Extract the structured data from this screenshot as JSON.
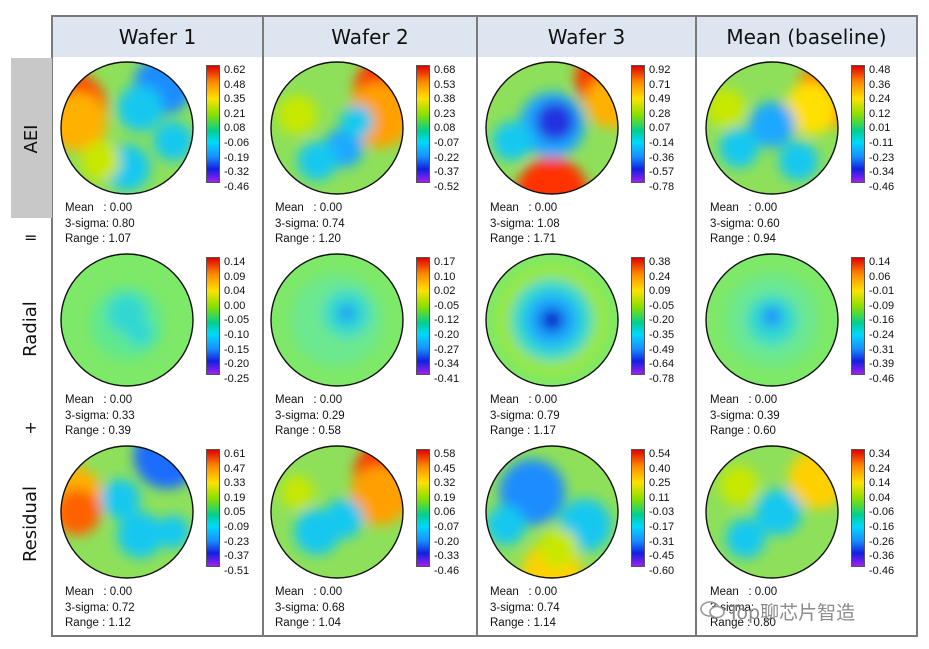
{
  "columns": [
    "Wafer 1",
    "Wafer 2",
    "Wafer 3",
    "Mean (baseline)"
  ],
  "rows": [
    {
      "label": "AEI",
      "operator": "="
    },
    {
      "label": "Radial",
      "operator": "+"
    },
    {
      "label": "Residual",
      "operator": ""
    }
  ],
  "stat_labels": {
    "mean": "Mean",
    "sigma": "3-sigma",
    "range": "Range"
  },
  "panels": [
    [
      {
        "mean": "0.00",
        "sigma": "0.80",
        "range": "1.07",
        "ticks": [
          "0.62",
          "0.48",
          "0.35",
          "0.21",
          "0.08",
          "-0.06",
          "-0.19",
          "-0.32",
          "-0.46"
        ]
      },
      {
        "mean": "0.00",
        "sigma": "0.74",
        "range": "1.20",
        "ticks": [
          "0.68",
          "0.53",
          "0.38",
          "0.23",
          "0.08",
          "-0.07",
          "-0.22",
          "-0.37",
          "-0.52"
        ]
      },
      {
        "mean": "0.00",
        "sigma": "1.08",
        "range": "1.71",
        "ticks": [
          "0.92",
          "0.71",
          "0.49",
          "0.28",
          "0.07",
          "-0.14",
          "-0.36",
          "-0.57",
          "-0.78"
        ]
      },
      {
        "mean": "0.00",
        "sigma": "0.60",
        "range": "0.94",
        "ticks": [
          "0.48",
          "0.36",
          "0.24",
          "0.12",
          "0.01",
          "-0.11",
          "-0.23",
          "-0.34",
          "-0.46"
        ]
      }
    ],
    [
      {
        "mean": "0.00",
        "sigma": "0.33",
        "range": "0.39",
        "ticks": [
          "0.14",
          "0.09",
          "0.04",
          "0.00",
          "-0.05",
          "-0.10",
          "-0.15",
          "-0.20",
          "-0.25"
        ]
      },
      {
        "mean": "0.00",
        "sigma": "0.29",
        "range": "0.58",
        "ticks": [
          "0.17",
          "0.10",
          "0.02",
          "-0.05",
          "-0.12",
          "-0.20",
          "-0.27",
          "-0.34",
          "-0.41"
        ]
      },
      {
        "mean": "0.00",
        "sigma": "0.79",
        "range": "1.17",
        "ticks": [
          "0.38",
          "0.24",
          "0.09",
          "-0.05",
          "-0.20",
          "-0.35",
          "-0.49",
          "-0.64",
          "-0.78"
        ]
      },
      {
        "mean": "0.00",
        "sigma": "0.39",
        "range": "0.60",
        "ticks": [
          "0.14",
          "0.06",
          "-0.01",
          "-0.09",
          "-0.16",
          "-0.24",
          "-0.31",
          "-0.39",
          "-0.46"
        ]
      }
    ],
    [
      {
        "mean": "0.00",
        "sigma": "0.72",
        "range": "1.12",
        "ticks": [
          "0.61",
          "0.47",
          "0.33",
          "0.19",
          "0.05",
          "-0.09",
          "-0.23",
          "-0.37",
          "-0.51"
        ]
      },
      {
        "mean": "0.00",
        "sigma": "0.68",
        "range": "1.04",
        "ticks": [
          "0.58",
          "0.45",
          "0.32",
          "0.19",
          "0.06",
          "-0.07",
          "-0.20",
          "-0.33",
          "-0.46"
        ]
      },
      {
        "mean": "0.00",
        "sigma": "0.74",
        "range": "1.14",
        "ticks": [
          "0.54",
          "0.40",
          "0.25",
          "0.11",
          "-0.03",
          "-0.17",
          "-0.31",
          "-0.45",
          "-0.60"
        ]
      },
      {
        "mean": "0.00",
        "sigma": "",
        "range": "0.80",
        "ticks": [
          "0.34",
          "0.24",
          "0.14",
          "0.04",
          "-0.06",
          "-0.16",
          "-0.26",
          "-0.36",
          "-0.46"
        ]
      }
    ]
  ],
  "watermark": "Top聊芯片智造",
  "colors": {
    "header_bg": "#dde6f0",
    "border": "#7a7a7a",
    "map_base": "#8ee05a",
    "map_low": "#1aa8ff",
    "map_high": "#ff3a00"
  },
  "icons": {
    "watermark": "wechat-icon"
  }
}
